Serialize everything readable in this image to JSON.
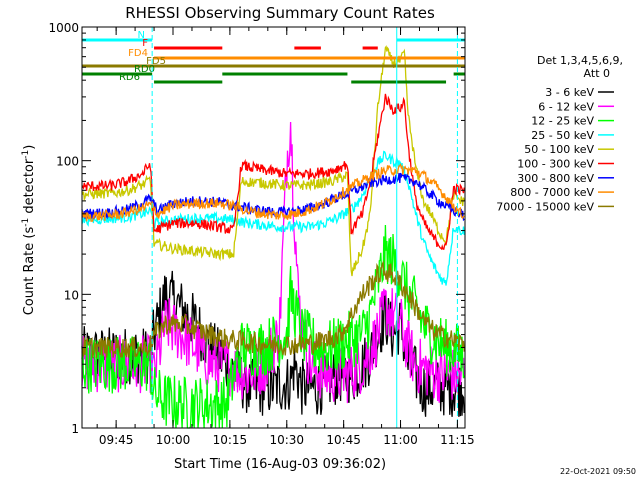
{
  "chart_data": {
    "type": "line",
    "title": "RHESSI Observing Summary Count Rates",
    "xlabel": "Start Time (16-Aug-03 09:36:02)",
    "ylabel_main": "Count Rate (s",
    "ylabel_sup1": "-1",
    "ylabel_mid": " detector",
    "ylabel_sup2": "-1",
    "ylabel_end": ")",
    "yscale": "log",
    "ylim": [
      1,
      1000
    ],
    "xlim_minutes": [
      0,
      101
    ],
    "y_ticks": [
      {
        "value": 1,
        "label": "1"
      },
      {
        "value": 10,
        "label": "10"
      },
      {
        "value": 100,
        "label": "100"
      },
      {
        "value": 1000,
        "label": "1000"
      }
    ],
    "x_ticks": [
      {
        "minute": 9,
        "label": "09:45"
      },
      {
        "minute": 24,
        "label": "10:00"
      },
      {
        "minute": 39,
        "label": "10:15"
      },
      {
        "minute": 54,
        "label": "10:30"
      },
      {
        "minute": 69,
        "label": "10:45"
      },
      {
        "minute": 84,
        "label": "11:00"
      },
      {
        "minute": 99,
        "label": "11:15"
      }
    ],
    "legend": {
      "placement": "right",
      "header": [
        "Det 1,3,4,5,6,9,",
        "Att 0"
      ]
    },
    "series": [
      {
        "name": "3 - 6 keV",
        "color": "#000000",
        "x": [
          0,
          18,
          19,
          22,
          26,
          30,
          34,
          38,
          44,
          50,
          55,
          56,
          58,
          62,
          68,
          72,
          76,
          78,
          80,
          82,
          84,
          86,
          88,
          90,
          95,
          100,
          101
        ],
        "y": [
          3.5,
          3.5,
          5,
          10,
          8,
          6,
          4,
          3,
          2,
          2,
          2.2,
          3,
          2,
          2,
          2.5,
          2.5,
          3.5,
          5,
          7,
          5,
          6,
          3,
          2.5,
          2,
          2,
          2,
          2
        ]
      },
      {
        "name": "6 - 12 keV",
        "color": "#ff00ff",
        "x": [
          0,
          18,
          19,
          22,
          26,
          30,
          34,
          38,
          44,
          48,
          52,
          54,
          55,
          56,
          57,
          58,
          60,
          64,
          70,
          74,
          78,
          80,
          82,
          84,
          86,
          88,
          90,
          95,
          100,
          101
        ],
        "y": [
          3,
          3,
          2.5,
          6,
          5,
          4,
          3,
          3,
          2.5,
          3,
          5,
          100,
          200,
          40,
          10,
          6,
          3,
          2.5,
          2.5,
          3,
          5,
          8,
          7,
          6,
          4,
          3,
          2.8,
          2.5,
          2.5,
          2.5
        ]
      },
      {
        "name": "12 - 25 keV",
        "color": "#00ff00",
        "x": [
          0,
          18,
          19,
          22,
          26,
          30,
          34,
          38,
          42,
          48,
          54,
          55,
          56,
          58,
          62,
          66,
          70,
          74,
          76,
          78,
          80,
          82,
          84,
          86,
          88,
          90,
          92,
          94,
          96,
          98,
          100,
          101
        ],
        "y": [
          3,
          3,
          1.8,
          1.6,
          1.5,
          1.5,
          1.5,
          1.5,
          4,
          4,
          5,
          10,
          8,
          5,
          4,
          4,
          4.5,
          5,
          7,
          12,
          20,
          18,
          14,
          10,
          8,
          6,
          5,
          4.5,
          4,
          4,
          3.5,
          3.5
        ]
      },
      {
        "name": "25 - 50 keV",
        "color": "#00ffff",
        "x": [
          0,
          8,
          12,
          16,
          18,
          19,
          24,
          30,
          36,
          40,
          44,
          48,
          52,
          56,
          60,
          64,
          68,
          70,
          72,
          74,
          76,
          78,
          80,
          82,
          84,
          86,
          88,
          90,
          92,
          94,
          96,
          98,
          100,
          101
        ],
        "y": [
          36,
          37,
          38,
          40,
          42,
          34,
          36,
          37,
          37,
          36,
          34,
          33,
          32,
          32,
          32,
          34,
          38,
          42,
          46,
          55,
          75,
          95,
          110,
          100,
          95,
          70,
          40,
          25,
          18,
          14,
          12,
          32,
          30,
          30
        ]
      },
      {
        "name": "50 - 100 keV",
        "color": "#c8c800",
        "x": [
          0,
          8,
          12,
          16,
          18,
          19,
          24,
          30,
          36,
          40,
          42,
          48,
          54,
          60,
          66,
          70,
          71,
          74,
          76,
          78,
          80,
          82,
          84,
          85,
          86,
          88,
          90,
          92,
          94,
          96,
          98,
          100,
          101
        ],
        "y": [
          56,
          57,
          60,
          66,
          72,
          24,
          22,
          21,
          20,
          20,
          70,
          68,
          65,
          66,
          70,
          78,
          14,
          22,
          40,
          250,
          690,
          540,
          560,
          640,
          220,
          90,
          50,
          40,
          30,
          25,
          55,
          50,
          50
        ]
      },
      {
        "name": "100 - 300 keV",
        "color": "#ff0000",
        "x": [
          0,
          8,
          12,
          16,
          18,
          19,
          24,
          30,
          36,
          40,
          42,
          48,
          54,
          60,
          66,
          70,
          71,
          74,
          76,
          78,
          80,
          82,
          84,
          85,
          86,
          88,
          90,
          92,
          94,
          96,
          98,
          100,
          101
        ],
        "y": [
          64,
          65,
          70,
          80,
          95,
          30,
          34,
          34,
          32,
          30,
          92,
          85,
          80,
          80,
          84,
          95,
          30,
          40,
          70,
          150,
          300,
          240,
          250,
          280,
          130,
          50,
          35,
          28,
          24,
          22,
          62,
          60,
          60
        ]
      },
      {
        "name": "300 - 800 keV",
        "color": "#0000ff",
        "x": [
          0,
          8,
          12,
          16,
          18,
          20,
          24,
          30,
          36,
          40,
          44,
          48,
          52,
          56,
          60,
          64,
          68,
          72,
          76,
          80,
          84,
          88,
          90,
          94,
          98,
          100,
          101
        ],
        "y": [
          40,
          41,
          43,
          48,
          52,
          42,
          48,
          50,
          49,
          46,
          44,
          42,
          41,
          42,
          44,
          48,
          54,
          60,
          68,
          72,
          74,
          70,
          62,
          50,
          42,
          40,
          38
        ]
      },
      {
        "name": "800 - 7000 keV",
        "color": "#ff8c00",
        "x": [
          0,
          8,
          12,
          16,
          18,
          20,
          24,
          30,
          36,
          40,
          44,
          48,
          52,
          56,
          60,
          64,
          68,
          72,
          76,
          80,
          84,
          88,
          90,
          94,
          98,
          100,
          101
        ],
        "y": [
          38,
          39,
          41,
          44,
          47,
          40,
          46,
          48,
          48,
          46,
          42,
          40,
          39,
          40,
          43,
          48,
          56,
          66,
          76,
          84,
          86,
          84,
          78,
          62,
          46,
          40,
          38
        ]
      },
      {
        "name": "7000 - 15000 keV",
        "color": "#8b7a00",
        "x": [
          0,
          16,
          18,
          19,
          22,
          26,
          30,
          34,
          38,
          44,
          50,
          56,
          60,
          64,
          68,
          70,
          72,
          74,
          76,
          78,
          80,
          82,
          84,
          86,
          88,
          90,
          92,
          94,
          96,
          98,
          100,
          101
        ],
        "y": [
          4,
          4,
          4.2,
          5,
          6,
          6,
          5.5,
          5,
          4.6,
          4.4,
          4.2,
          4.2,
          4.3,
          4.5,
          5,
          6,
          8,
          10,
          12,
          14,
          15,
          14,
          12,
          10,
          8,
          6.5,
          5.5,
          5,
          4.8,
          4.5,
          4.3,
          4.3
        ]
      }
    ],
    "flag_bars": [
      {
        "label": "N",
        "color": "#00ffff",
        "segments": [
          [
            0,
            18.5
          ],
          [
            83,
            101
          ]
        ]
      },
      {
        "label": "F",
        "color": "#ff0000",
        "segments": [
          [
            19,
            37
          ],
          [
            56,
            63
          ],
          [
            74,
            78
          ]
        ]
      },
      {
        "label": "FD4",
        "color": "#ff8c00",
        "segments": [
          [
            19,
            101
          ]
        ]
      },
      {
        "label": "FD5",
        "color": "#8b7a00",
        "segments": [
          [
            0,
            101
          ]
        ]
      },
      {
        "label": "RD0",
        "color": "#008000",
        "segments": [
          [
            0,
            18.5
          ],
          [
            37,
            70
          ],
          [
            98,
            101
          ]
        ]
      },
      {
        "label": "RD6",
        "color": "#008000",
        "segments": [
          [
            19,
            37
          ],
          [
            71,
            96
          ]
        ]
      }
    ],
    "vertical_markers": [
      {
        "minute": 18.5,
        "color": "#00ffff",
        "style": "dashed"
      },
      {
        "minute": 83,
        "color": "#00ffff",
        "style": "solid"
      },
      {
        "minute": 99,
        "color": "#00ffff",
        "style": "dashed"
      }
    ]
  },
  "footer": {
    "timestamp": "22-Oct-2021 09:50"
  }
}
